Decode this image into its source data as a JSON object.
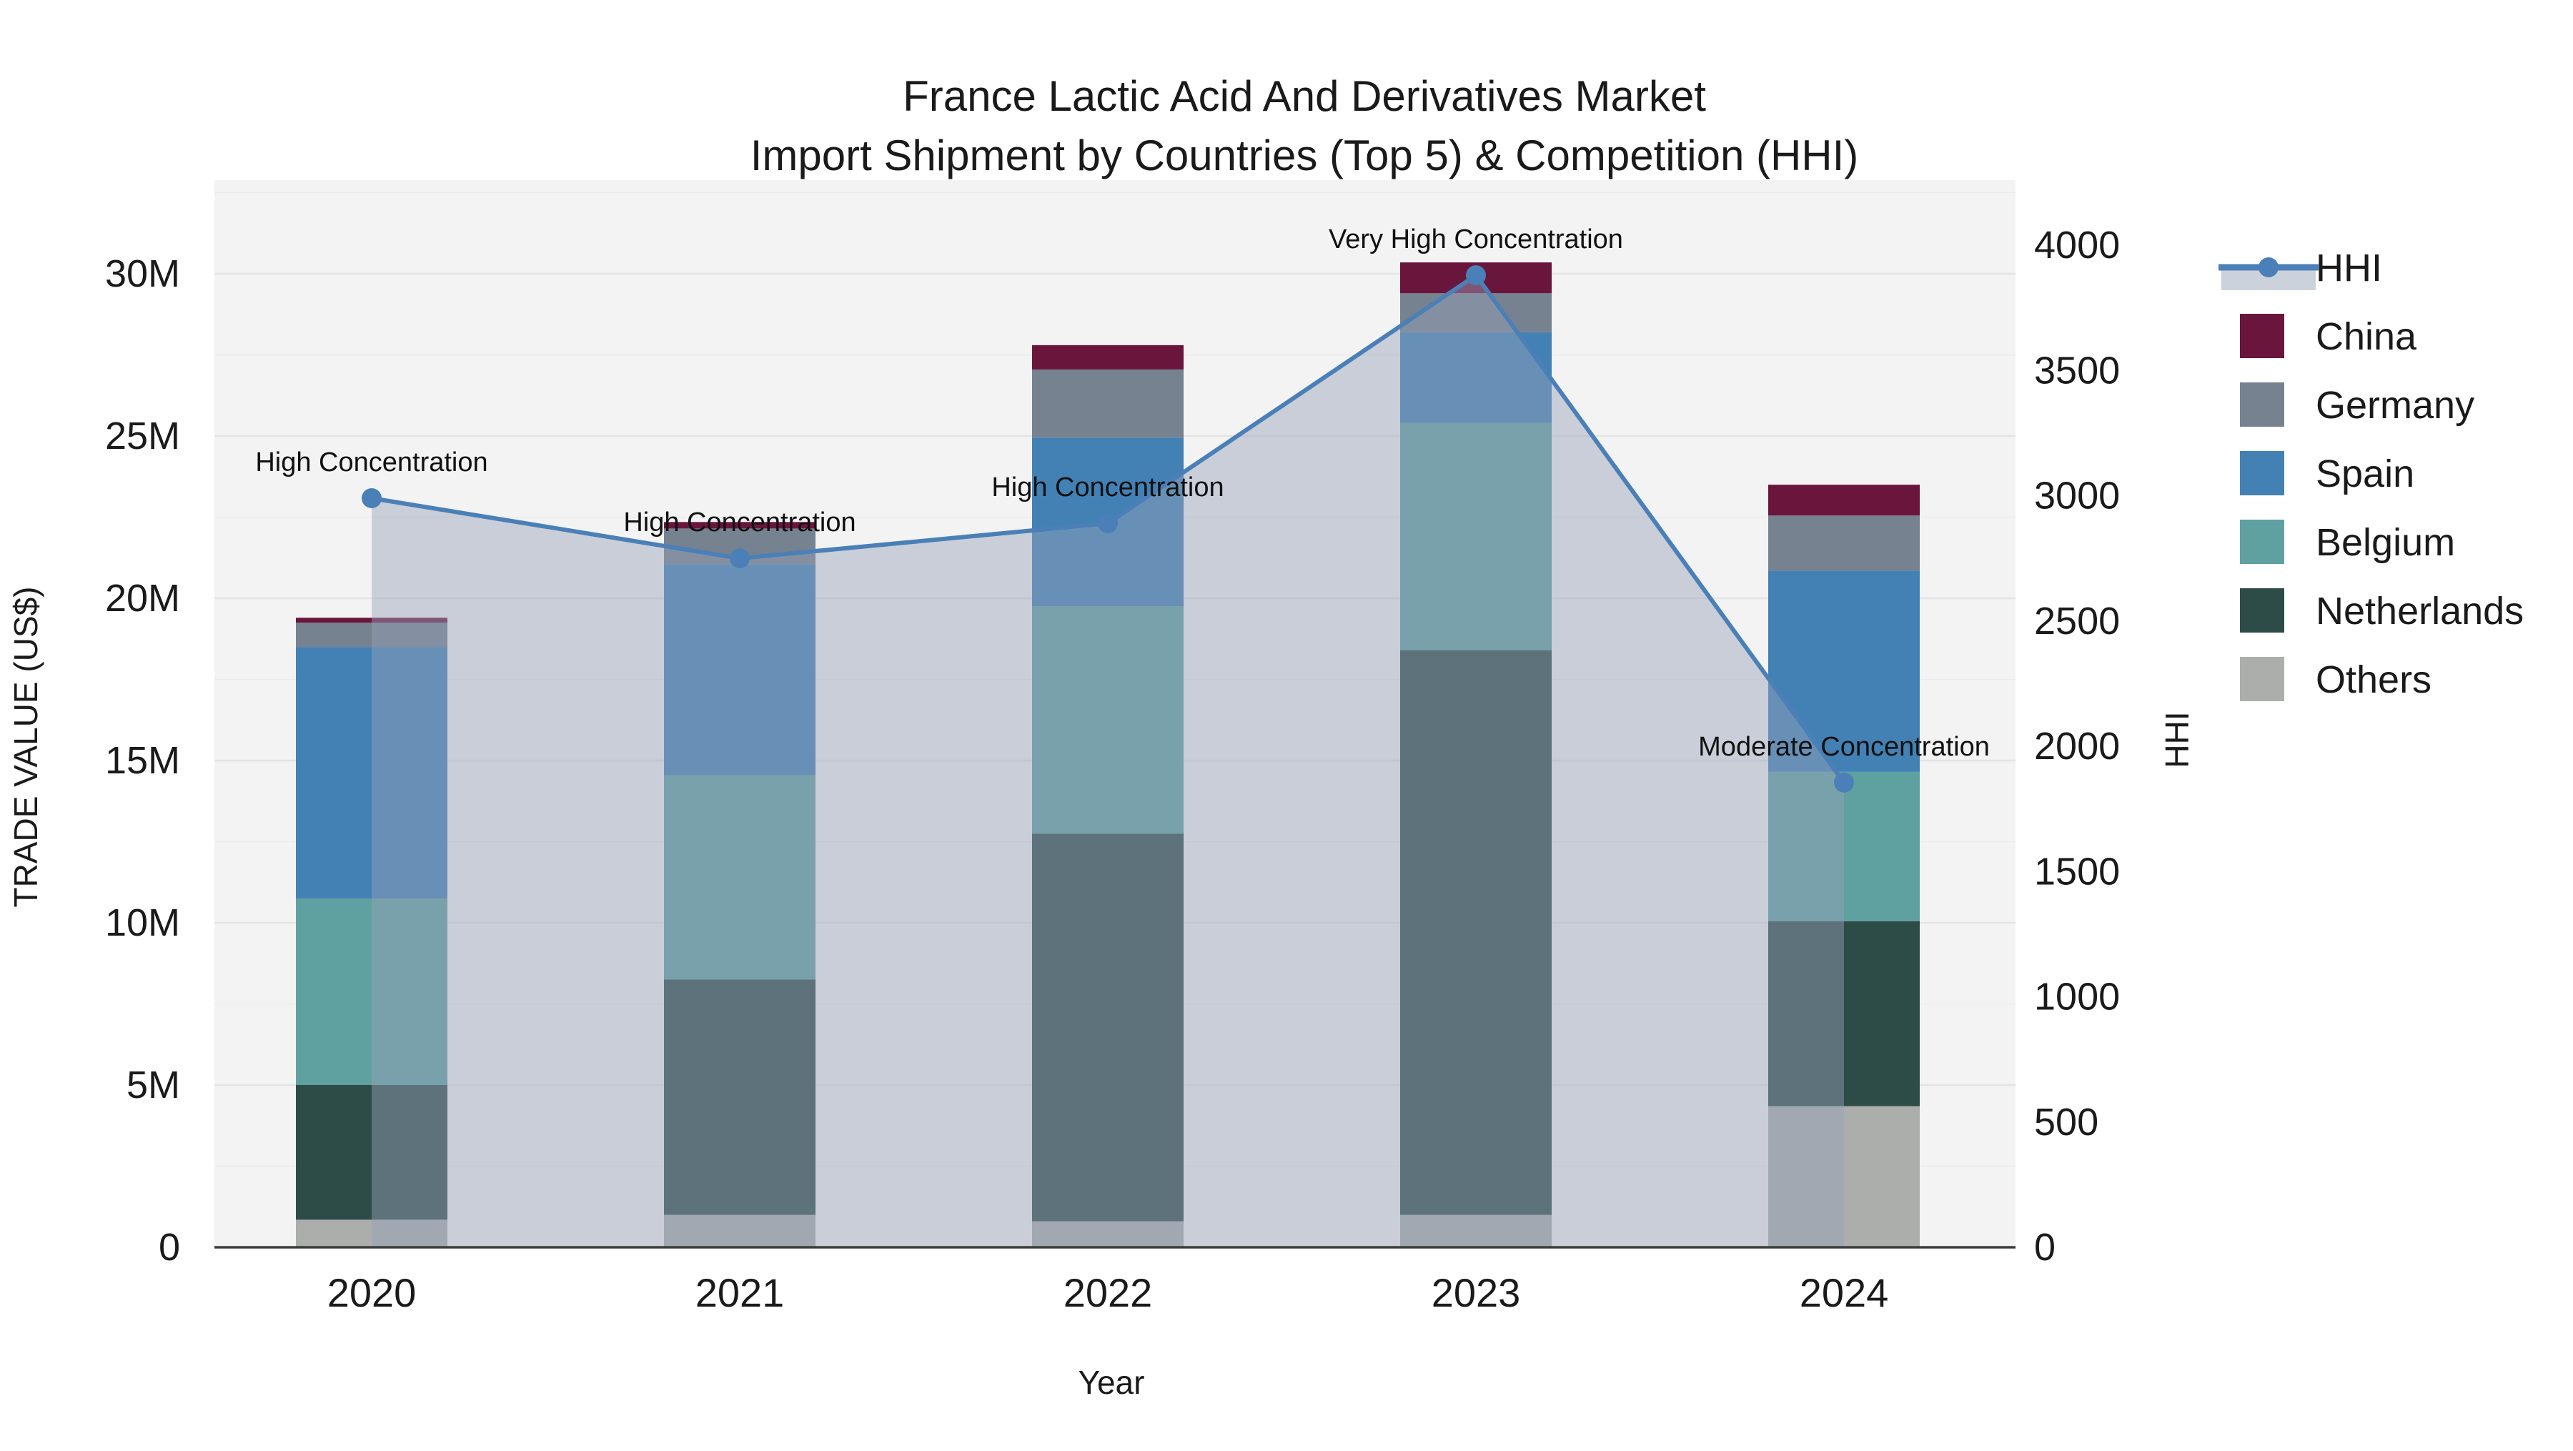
{
  "title": {
    "line1": "France Lactic Acid And Derivatives Market",
    "line2": "Import Shipment by Countries (Top 5) & Competition (HHI)"
  },
  "axes": {
    "left": {
      "title": "TRADE VALUE (US$)",
      "tick_labels": [
        "0",
        "5M",
        "10M",
        "15M",
        "20M",
        "25M",
        "30M"
      ],
      "tick_values": [
        0,
        5,
        10,
        15,
        20,
        25,
        30
      ],
      "unit": "million US$",
      "max_shown": 32.9
    },
    "right": {
      "title": "HHI",
      "tick_labels": [
        "0",
        "500",
        "1000",
        "1500",
        "2000",
        "2500",
        "3000",
        "3500",
        "4000"
      ],
      "tick_values": [
        0,
        500,
        1000,
        1500,
        2000,
        2500,
        3000,
        3500,
        4000
      ],
      "max_shown": 4300
    },
    "bottom": {
      "title": "Year",
      "tick_labels": [
        "2020",
        "2021",
        "2022",
        "2023",
        "2024"
      ]
    }
  },
  "legend": {
    "entries": [
      {
        "label": "HHI",
        "type": "line",
        "color": "#4a80b7"
      },
      {
        "label": "China",
        "type": "swatch",
        "color": "#6a163c"
      },
      {
        "label": "Germany",
        "type": "swatch",
        "color": "#76828f"
      },
      {
        "label": "Spain",
        "type": "swatch",
        "color": "#4381b5"
      },
      {
        "label": "Belgium",
        "type": "swatch",
        "color": "#5fa1a1"
      },
      {
        "label": "Netherlands",
        "type": "swatch",
        "color": "#2e4c47"
      },
      {
        "label": "Others",
        "type": "swatch",
        "color": "#acaeab"
      }
    ]
  },
  "chart_data": {
    "type": "bar",
    "subtype": "stacked bars with overlaid line+area on secondary axis",
    "title": "France Lactic Acid And Derivatives Market — Import Shipment by Countries (Top 5) & Competition (HHI)",
    "xlabel": "Year",
    "ylabel_left": "TRADE VALUE (US$)",
    "ylabel_right": "HHI",
    "ylim_left_millions": [
      0,
      32.9
    ],
    "ylim_right": [
      0,
      4300
    ],
    "grid": "horizontal, every 2.5M, light gray",
    "legend_position": "outside right",
    "categories": [
      2020,
      2021,
      2022,
      2023,
      2024
    ],
    "stack_order_bottom_to_top": [
      "Others",
      "Netherlands",
      "Belgium",
      "Spain",
      "Germany",
      "China"
    ],
    "series": [
      {
        "name": "Others",
        "color": "#acaeab",
        "values_millions": [
          0.85,
          1.0,
          0.8,
          1.0,
          4.35
        ]
      },
      {
        "name": "Netherlands",
        "color": "#2e4c47",
        "values_millions": [
          4.15,
          7.25,
          11.95,
          17.4,
          5.7
        ]
      },
      {
        "name": "Belgium",
        "color": "#5fa1a1",
        "values_millions": [
          5.75,
          6.3,
          7.0,
          7.0,
          4.6
        ]
      },
      {
        "name": "Spain",
        "color": "#4381b5",
        "values_millions": [
          7.75,
          6.5,
          5.2,
          2.8,
          6.2
        ]
      },
      {
        "name": "Germany",
        "color": "#76828f",
        "values_millions": [
          0.75,
          1.1,
          2.1,
          1.2,
          1.7
        ]
      },
      {
        "name": "China",
        "color": "#6a163c",
        "values_millions": [
          0.15,
          0.2,
          0.75,
          0.95,
          0.95
        ]
      }
    ],
    "bar_totals_millions": [
      19.4,
      22.35,
      27.8,
      30.35,
      23.5
    ],
    "hhi_line": {
      "name": "HHI",
      "color": "#4a80b7",
      "area_fill": "rgba(150,162,183,0.45)",
      "values": [
        2990,
        2750,
        2890,
        3880,
        1855
      ],
      "annotations": [
        "High Concentration",
        "High Concentration",
        "High Concentration",
        "Very High Concentration",
        "Moderate Concentration"
      ]
    }
  },
  "colors": {
    "plot_bg": "#f3f3f3",
    "page_bg": "#ffffff",
    "grid_major": "#e4e4e4",
    "grid_minor": "#ebebeb",
    "axis_line": "#3d3d3d",
    "text": "#1a1a1a",
    "legend_area_band": "#ccd2dc"
  }
}
